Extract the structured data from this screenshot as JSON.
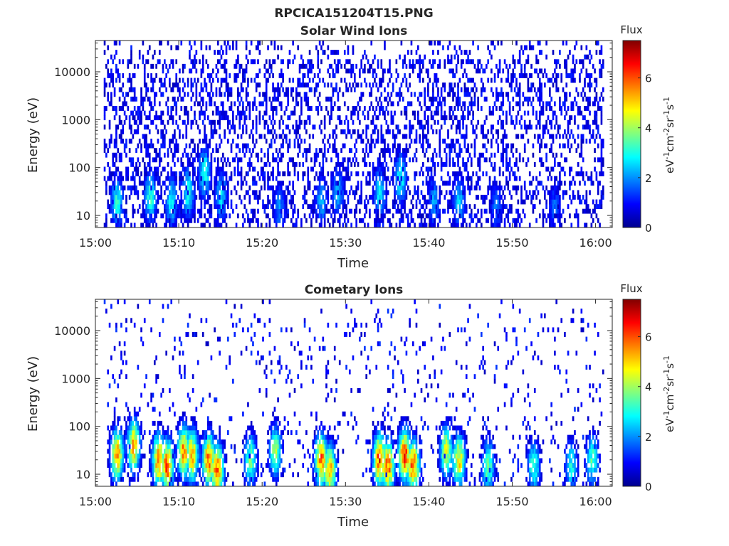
{
  "figure_title": "RPCICA151204T15.PNG",
  "colors": {
    "colormap": "jet",
    "axis": "#262626"
  },
  "chart_data": [
    {
      "type": "heatmap",
      "title": "Solar Wind Ions",
      "xlabel": "Time",
      "ylabel": "Energy (eV)",
      "y_scale": "log",
      "xlim": [
        "15:00",
        "16:02"
      ],
      "ylim": [
        5.6,
        45000
      ],
      "x_ticks": [
        "15:00",
        "15:10",
        "15:20",
        "15:30",
        "15:40",
        "15:50",
        "16:00"
      ],
      "y_ticks": [
        10,
        100,
        1000,
        10000
      ],
      "y_tick_labels": [
        "10",
        "100",
        "1000",
        "10000"
      ],
      "data_x_range": [
        "15:01",
        "16:01"
      ],
      "colorbar": {
        "title": "Flux",
        "label_parts": [
          "eV",
          "-1",
          "cm",
          "-2",
          "sr",
          "-1",
          "s",
          "-1"
        ],
        "range": [
          0,
          7.5
        ],
        "ticks": [
          0,
          2,
          4,
          6
        ],
        "tick_labels": [
          "0",
          "2",
          "4",
          "6"
        ]
      },
      "pattern": {
        "seed": 1337,
        "event_times_min": [
          2.5,
          6.5,
          9,
          11,
          13,
          15,
          22,
          27,
          29,
          34,
          36.5,
          40.5,
          43.5,
          48,
          55
        ],
        "event_strength": [
          3.0,
          3.2,
          2.8,
          3.0,
          3.1,
          2.6,
          2.0,
          2.3,
          2.4,
          2.7,
          3.0,
          2.2,
          2.5,
          1.9,
          1.7
        ],
        "event_peak_energy_ev": [
          20,
          25,
          20,
          30,
          80,
          25,
          15,
          20,
          30,
          30,
          60,
          20,
          20,
          15,
          15
        ],
        "background_level": 0.9,
        "background_density": 0.33
      }
    },
    {
      "type": "heatmap",
      "title": "Cometary Ions",
      "xlabel": "Time",
      "ylabel": "Energy (eV)",
      "y_scale": "log",
      "xlim": [
        "15:00",
        "16:02"
      ],
      "ylim": [
        5.6,
        45000
      ],
      "x_ticks": [
        "15:00",
        "15:10",
        "15:20",
        "15:30",
        "15:40",
        "15:50",
        "16:00"
      ],
      "y_ticks": [
        10,
        100,
        1000,
        10000
      ],
      "y_tick_labels": [
        "10",
        "100",
        "1000",
        "10000"
      ],
      "data_x_range": [
        "15:01",
        "16:01"
      ],
      "colorbar": {
        "title": "Flux",
        "label_parts": [
          "eV",
          "-1",
          "cm",
          "-2",
          "sr",
          "-1",
          "s",
          "-1"
        ],
        "range": [
          0,
          7.5
        ],
        "ticks": [
          0,
          2,
          4,
          6
        ],
        "tick_labels": [
          "0",
          "2",
          "4",
          "6"
        ]
      },
      "pattern": {
        "seed": 4242,
        "event_times_min": [
          2.5,
          4.5,
          7.5,
          8.5,
          10.5,
          11.5,
          13.5,
          14.5,
          18.5,
          21.5,
          27,
          28,
          34,
          35,
          37,
          38,
          42,
          43.5,
          47,
          52.5,
          57,
          59.5
        ],
        "event_strength": [
          5.5,
          5.3,
          5.8,
          6.0,
          5.6,
          5.4,
          5.9,
          6.1,
          3.8,
          4.0,
          5.8,
          5.5,
          6.2,
          5.9,
          6.3,
          6.0,
          4.5,
          5.0,
          3.8,
          3.3,
          3.0,
          3.4
        ],
        "event_peak_energy_ev": [
          25,
          40,
          20,
          15,
          30,
          25,
          20,
          12,
          20,
          30,
          20,
          12,
          20,
          15,
          25,
          15,
          30,
          20,
          15,
          15,
          15,
          20
        ],
        "background_level": 1.0,
        "background_density": 0.07
      }
    }
  ]
}
